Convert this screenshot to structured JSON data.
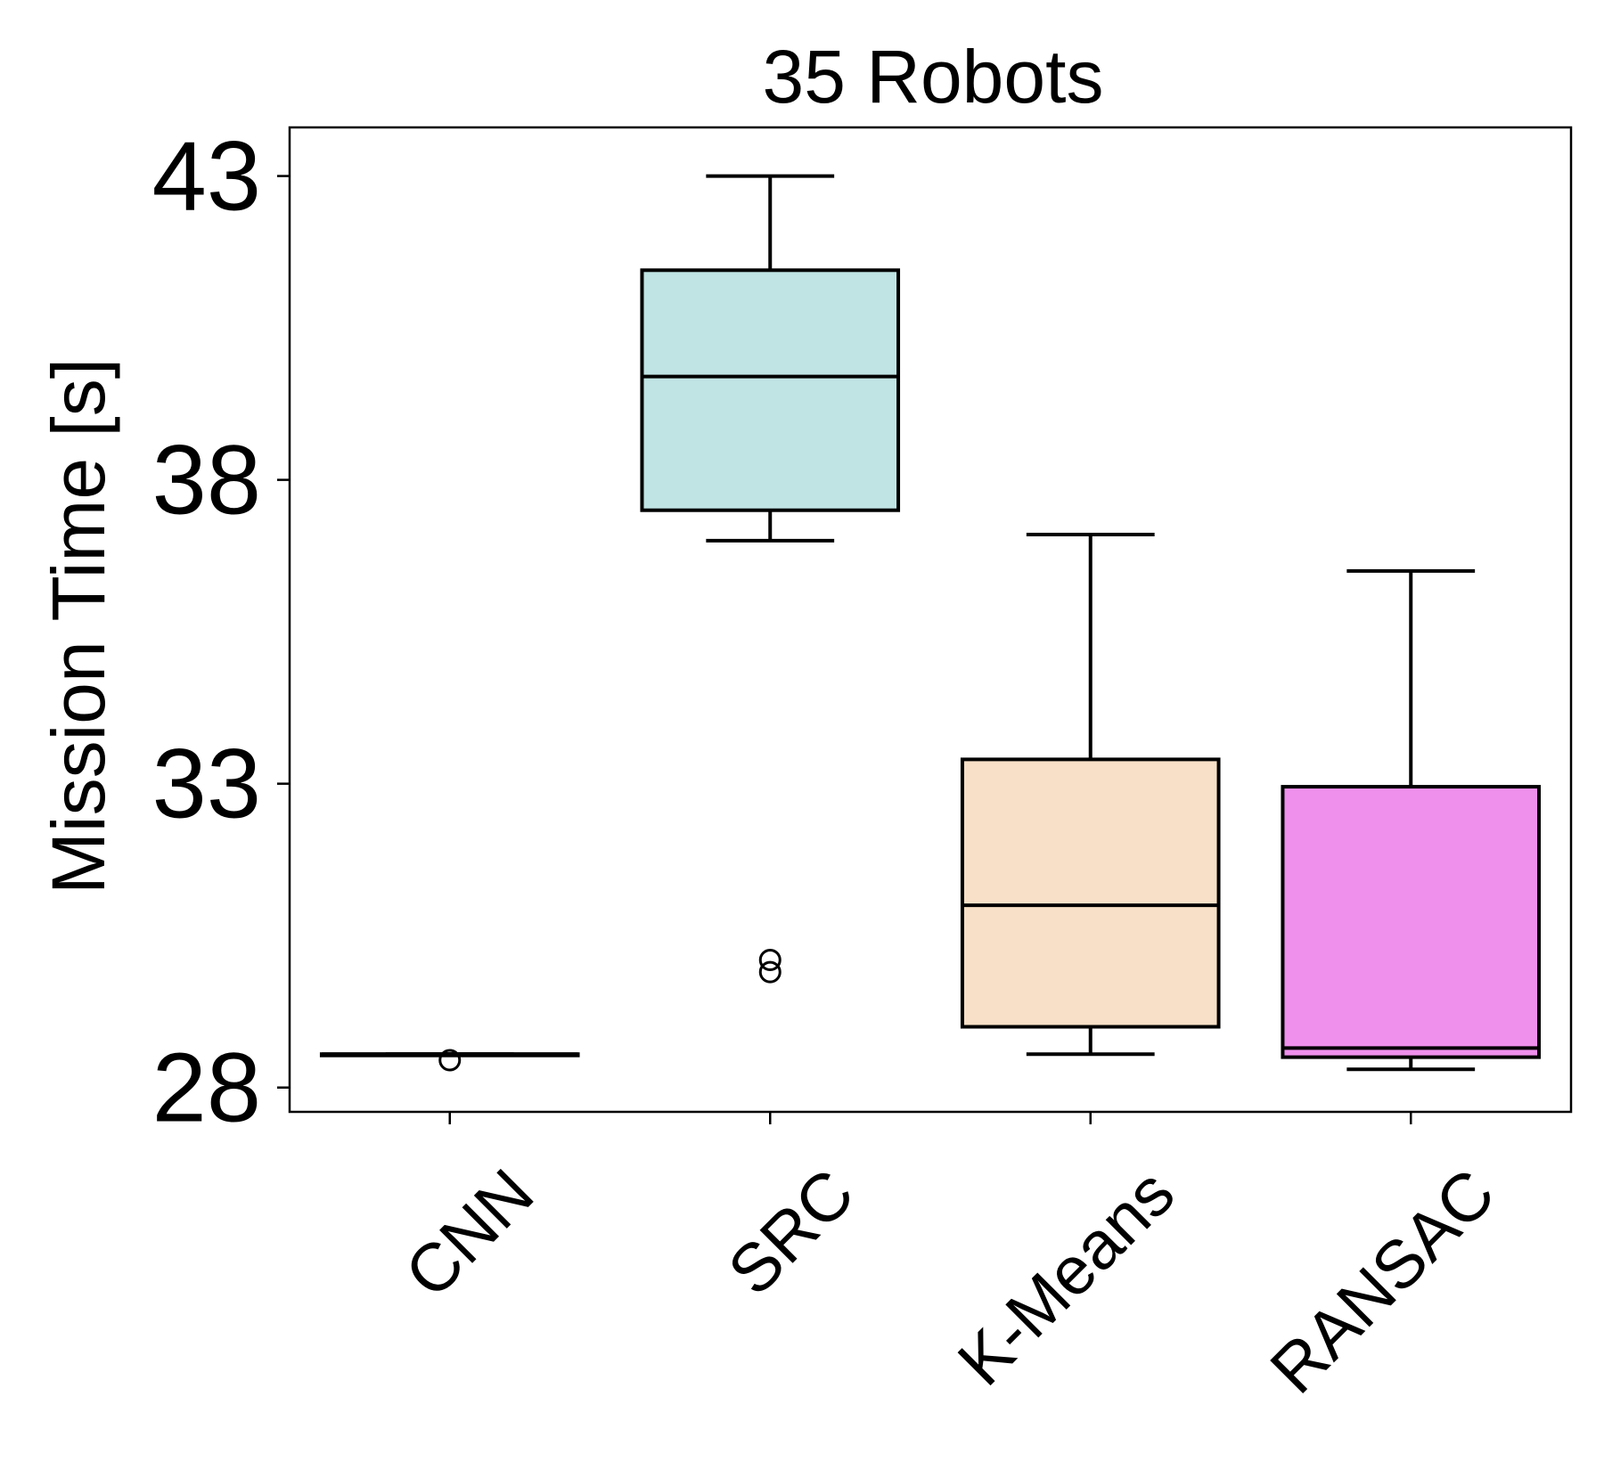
{
  "chart_data": {
    "type": "box",
    "title": "35 Robots",
    "ylabel": "Mission Time [s]",
    "xlabel": "",
    "ylim": [
      27.6,
      43.8
    ],
    "yticks": [
      28,
      33,
      38,
      43
    ],
    "categories": [
      "CNN",
      "SRC",
      "K-Means",
      "RANSAC"
    ],
    "boxes": [
      {
        "category": "CNN",
        "whisker_low": 28.55,
        "q1": 28.55,
        "median": 28.55,
        "q3": 28.55,
        "whisker_high": 28.55,
        "outliers": [
          28.45
        ],
        "color": "#ffffff"
      },
      {
        "category": "SRC",
        "whisker_low": 37.0,
        "q1": 37.5,
        "median": 39.7,
        "q3": 41.45,
        "whisker_high": 43.0,
        "outliers": [
          29.9,
          30.1
        ],
        "color": "#bfe4e3"
      },
      {
        "category": "K-Means",
        "whisker_low": 28.55,
        "q1": 29.0,
        "median": 31.0,
        "q3": 33.4,
        "whisker_high": 37.1,
        "outliers": [],
        "color": "#f7e0c7"
      },
      {
        "category": "RANSAC",
        "whisker_low": 28.3,
        "q1": 28.5,
        "median": 28.65,
        "q3": 32.95,
        "whisker_high": 36.5,
        "outliers": [],
        "color": "#ef90ec"
      }
    ],
    "grid": false,
    "legend": "none"
  }
}
